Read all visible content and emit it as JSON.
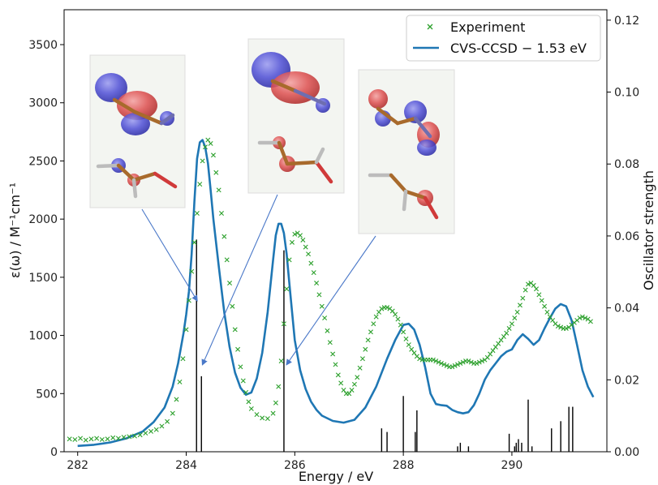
{
  "chart_data": {
    "type": "line",
    "xlabel": "Energy / eV",
    "ylabel": "ε(ω) / M⁻¹cm⁻¹",
    "y2label": "Oscillator strength",
    "xlim": [
      281.75,
      291.75
    ],
    "ylim": [
      0,
      3800
    ],
    "y2lim": [
      0,
      0.1229
    ],
    "xticks": [
      282,
      284,
      286,
      288,
      290
    ],
    "yticks": [
      0,
      500,
      1000,
      1500,
      2000,
      2500,
      3000,
      3500
    ],
    "y2ticks": [
      0.0,
      0.02,
      0.04,
      0.06,
      0.08,
      0.1,
      0.12
    ],
    "y2tick_labels": [
      "0.00",
      "0.02",
      "0.04",
      "0.06",
      "0.08",
      "0.10",
      "0.12"
    ],
    "grid": false,
    "legend_position": "top-right",
    "series": [
      {
        "name": "Experiment",
        "style": "x-markers",
        "color": "#2ca02c",
        "x": [
          281.85,
          281.95,
          282.05,
          282.15,
          282.25,
          282.35,
          282.45,
          282.55,
          282.65,
          282.75,
          282.85,
          282.95,
          283.05,
          283.15,
          283.25,
          283.35,
          283.45,
          283.55,
          283.65,
          283.75,
          283.82,
          283.88,
          283.94,
          284.0,
          284.05,
          284.1,
          284.15,
          284.2,
          284.25,
          284.3,
          284.35,
          284.4,
          284.45,
          284.5,
          284.55,
          284.6,
          284.65,
          284.7,
          284.75,
          284.8,
          284.85,
          284.9,
          284.95,
          285.0,
          285.05,
          285.1,
          285.15,
          285.2,
          285.3,
          285.4,
          285.5,
          285.6,
          285.65,
          285.7,
          285.75,
          285.8,
          285.85,
          285.9,
          285.95,
          286.0,
          286.05,
          286.1,
          286.15,
          286.2,
          286.25,
          286.3,
          286.35,
          286.4,
          286.45,
          286.5,
          286.55,
          286.6,
          286.65,
          286.7,
          286.75,
          286.8,
          286.85,
          286.9,
          286.95,
          287.0,
          287.05,
          287.1,
          287.15,
          287.2,
          287.25,
          287.3,
          287.35,
          287.4,
          287.45,
          287.5,
          287.55,
          287.6,
          287.65,
          287.7,
          287.75,
          287.8,
          287.85,
          287.9,
          287.95,
          288.0,
          288.05,
          288.1,
          288.15,
          288.2,
          288.25,
          288.3,
          288.35,
          288.4,
          288.45,
          288.5,
          288.55,
          288.6,
          288.65,
          288.7,
          288.75,
          288.8,
          288.85,
          288.9,
          288.95,
          289.0,
          289.05,
          289.1,
          289.15,
          289.2,
          289.25,
          289.3,
          289.35,
          289.4,
          289.45,
          289.5,
          289.55,
          289.6,
          289.65,
          289.7,
          289.75,
          289.8,
          289.85,
          289.9,
          289.95,
          290.0,
          290.05,
          290.1,
          290.15,
          290.2,
          290.25,
          290.3,
          290.35,
          290.4,
          290.45,
          290.5,
          290.55,
          290.6,
          290.65,
          290.7,
          290.75,
          290.8,
          290.85,
          290.9,
          290.95,
          291.0,
          291.05,
          291.1,
          291.15,
          291.2,
          291.25,
          291.3,
          291.35,
          291.4,
          291.45
        ],
        "y": [
          110,
          105,
          115,
          100,
          110,
          115,
          105,
          110,
          120,
          115,
          125,
          130,
          135,
          145,
          160,
          175,
          190,
          220,
          260,
          330,
          450,
          600,
          800,
          1050,
          1300,
          1550,
          1800,
          2050,
          2300,
          2500,
          2620,
          2680,
          2650,
          2550,
          2400,
          2250,
          2050,
          1850,
          1650,
          1450,
          1250,
          1050,
          880,
          730,
          610,
          510,
          430,
          370,
          320,
          290,
          285,
          330,
          420,
          560,
          780,
          1100,
          1400,
          1650,
          1800,
          1870,
          1880,
          1860,
          1820,
          1760,
          1700,
          1620,
          1540,
          1450,
          1350,
          1250,
          1150,
          1040,
          940,
          840,
          750,
          660,
          590,
          530,
          500,
          500,
          530,
          580,
          640,
          720,
          800,
          880,
          960,
          1030,
          1100,
          1160,
          1200,
          1230,
          1240,
          1240,
          1230,
          1210,
          1180,
          1140,
          1090,
          1030,
          970,
          920,
          880,
          850,
          820,
          800,
          790,
          790,
          790,
          790,
          790,
          780,
          770,
          760,
          750,
          740,
          730,
          730,
          740,
          750,
          760,
          770,
          780,
          780,
          770,
          760,
          760,
          770,
          780,
          790,
          810,
          840,
          870,
          900,
          930,
          960,
          990,
          1020,
          1060,
          1100,
          1150,
          1200,
          1260,
          1320,
          1390,
          1440,
          1450,
          1430,
          1400,
          1350,
          1300,
          1250,
          1200,
          1160,
          1130,
          1100,
          1080,
          1070,
          1060,
          1060,
          1070,
          1090,
          1110,
          1130,
          1150,
          1160,
          1150,
          1140,
          1120
        ]
      },
      {
        "name": "CVS-CCSD − 1.53 eV",
        "style": "line",
        "color": "#1f77b4",
        "x": [
          282.0,
          282.3,
          282.6,
          282.9,
          283.2,
          283.4,
          283.6,
          283.75,
          283.85,
          283.95,
          284.0,
          284.05,
          284.1,
          284.15,
          284.2,
          284.25,
          284.3,
          284.35,
          284.4,
          284.45,
          284.5,
          284.6,
          284.7,
          284.8,
          284.9,
          285.0,
          285.1,
          285.2,
          285.3,
          285.4,
          285.5,
          285.6,
          285.65,
          285.7,
          285.75,
          285.8,
          285.85,
          285.9,
          285.95,
          286.0,
          286.1,
          286.2,
          286.3,
          286.4,
          286.5,
          286.7,
          286.9,
          287.1,
          287.3,
          287.5,
          287.7,
          287.85,
          288.0,
          288.1,
          288.2,
          288.3,
          288.4,
          288.5,
          288.6,
          288.7,
          288.8,
          288.9,
          289.0,
          289.1,
          289.2,
          289.3,
          289.4,
          289.5,
          289.6,
          289.7,
          289.8,
          289.9,
          290.0,
          290.1,
          290.2,
          290.3,
          290.4,
          290.5,
          290.6,
          290.7,
          290.8,
          290.9,
          291.0,
          291.1,
          291.2,
          291.3,
          291.4,
          291.5
        ],
        "y": [
          50,
          60,
          80,
          115,
          175,
          255,
          380,
          560,
          760,
          1020,
          1180,
          1380,
          1700,
          2150,
          2520,
          2660,
          2680,
          2620,
          2480,
          2250,
          2000,
          1590,
          1200,
          900,
          680,
          550,
          490,
          510,
          630,
          850,
          1200,
          1650,
          1860,
          1960,
          1960,
          1880,
          1700,
          1450,
          1200,
          960,
          700,
          540,
          430,
          360,
          310,
          265,
          250,
          275,
          380,
          560,
          800,
          960,
          1090,
          1100,
          1050,
          920,
          730,
          500,
          410,
          400,
          395,
          360,
          340,
          330,
          340,
          400,
          500,
          620,
          700,
          760,
          820,
          860,
          880,
          960,
          1010,
          970,
          920,
          960,
          1060,
          1150,
          1230,
          1270,
          1250,
          1130,
          920,
          700,
          560,
          470
        ]
      },
      {
        "name": "Oscillator strength",
        "style": "stick",
        "color": "#000000",
        "axis": "right",
        "x": [
          284.19,
          284.28,
          285.8,
          287.6,
          287.7,
          288.0,
          288.22,
          288.25,
          289.0,
          289.05,
          289.2,
          289.95,
          290.05,
          290.08,
          290.12,
          290.18,
          290.3,
          290.37,
          290.73,
          290.9,
          291.05,
          291.12
        ],
        "y": [
          0.059,
          0.021,
          0.056,
          0.0065,
          0.0055,
          0.0155,
          0.0055,
          0.0115,
          0.0015,
          0.0025,
          0.0015,
          0.005,
          0.0015,
          0.0025,
          0.0035,
          0.0025,
          0.0145,
          0.0015,
          0.0065,
          0.0085,
          0.0125,
          0.0125
        ]
      }
    ],
    "insets": [
      {
        "name": "orbital-1",
        "points_to": {
          "x": 284.2,
          "y": 1300
        },
        "colors": [
          "#4848d0",
          "#d84848"
        ]
      },
      {
        "name": "orbital-2",
        "points_to": {
          "x": 284.3,
          "y": 750
        },
        "colors": [
          "#4848d0",
          "#d84848"
        ]
      },
      {
        "name": "orbital-3",
        "points_to": {
          "x": 285.85,
          "y": 750
        },
        "colors": [
          "#4848d0",
          "#d84848"
        ]
      }
    ]
  }
}
